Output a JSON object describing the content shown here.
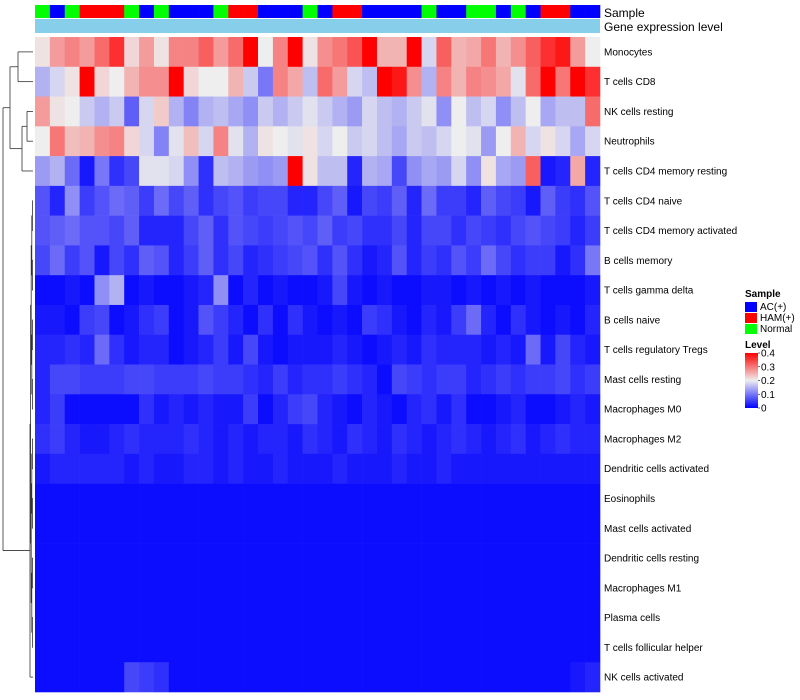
{
  "chart_data": {
    "type": "heatmap",
    "title": "",
    "annotation_labels": {
      "sample": "Sample",
      "expression": "Gene expression level"
    },
    "rows": [
      "Monocytes",
      "T cells CD8",
      "NK cells resting",
      "Neutrophils",
      "T cells CD4 memory resting",
      "T cells CD4 naive",
      "T cells CD4 memory activated",
      "B cells memory",
      "T cells gamma delta",
      "B cells naive",
      "T cells regulatory  Tregs",
      "Mast cells resting",
      "Macrophages M0",
      "Macrophages M2",
      "Dendritic cells activated",
      "Eosinophils",
      "Mast cells activated",
      "Dendritic cells resting",
      "Macrophages M1",
      "Plasma cells",
      "T cells follicular helper",
      "NK cells activated"
    ],
    "sample_groups": [
      "Normal",
      "AC(+)",
      "Normal",
      "HAM(+)",
      "HAM(+)",
      "HAM(+)",
      "Normal",
      "AC(+)",
      "Normal",
      "AC(+)",
      "AC(+)",
      "AC(+)",
      "Normal",
      "HAM(+)",
      "HAM(+)",
      "AC(+)",
      "AC(+)",
      "AC(+)",
      "Normal",
      "AC(+)",
      "HAM(+)",
      "HAM(+)",
      "AC(+)",
      "AC(+)",
      "AC(+)",
      "AC(+)",
      "Normal",
      "AC(+)",
      "AC(+)",
      "Normal",
      "Normal",
      "AC(+)",
      "Normal",
      "AC(+)",
      "HAM(+)",
      "HAM(+)",
      "AC(+)",
      "AC(+)"
    ],
    "values": [
      [
        0.21,
        0.27,
        0.29,
        0.27,
        0.31,
        0.36,
        0.22,
        0.27,
        0.21,
        0.29,
        0.29,
        0.32,
        0.27,
        0.31,
        0.42,
        0.2,
        0.29,
        0.4,
        0.21,
        0.28,
        0.3,
        0.33,
        0.4,
        0.25,
        0.25,
        0.42,
        0.18,
        0.32,
        0.25,
        0.26,
        0.3,
        0.25,
        0.28,
        0.32,
        0.36,
        0.38,
        0.27,
        0.2
      ],
      [
        0.15,
        0.18,
        0.21,
        0.4,
        0.22,
        0.2,
        0.25,
        0.28,
        0.28,
        0.4,
        0.22,
        0.2,
        0.2,
        0.25,
        0.17,
        0.1,
        0.29,
        0.26,
        0.16,
        0.31,
        0.27,
        0.18,
        0.16,
        0.4,
        0.38,
        0.28,
        0.15,
        0.29,
        0.25,
        0.29,
        0.28,
        0.26,
        0.19,
        0.31,
        0.42,
        0.3,
        0.4,
        0.36
      ],
      [
        0.27,
        0.21,
        0.2,
        0.17,
        0.15,
        0.17,
        0.08,
        0.18,
        0.23,
        0.15,
        0.11,
        0.15,
        0.16,
        0.14,
        0.12,
        0.17,
        0.15,
        0.17,
        0.19,
        0.17,
        0.15,
        0.13,
        0.18,
        0.16,
        0.15,
        0.17,
        0.19,
        0.12,
        0.2,
        0.16,
        0.18,
        0.12,
        0.16,
        0.2,
        0.14,
        0.16,
        0.16,
        0.31
      ],
      [
        0.2,
        0.3,
        0.24,
        0.25,
        0.28,
        0.29,
        0.22,
        0.18,
        0.11,
        0.19,
        0.24,
        0.18,
        0.29,
        0.19,
        0.15,
        0.21,
        0.2,
        0.19,
        0.21,
        0.18,
        0.2,
        0.17,
        0.18,
        0.16,
        0.14,
        0.17,
        0.16,
        0.18,
        0.2,
        0.19,
        0.13,
        0.2,
        0.25,
        0.18,
        0.21,
        0.18,
        0.14,
        0.18
      ],
      [
        0.13,
        0.15,
        0.09,
        0.02,
        0.1,
        0.04,
        0.06,
        0.19,
        0.19,
        0.18,
        0.12,
        0.04,
        0.16,
        0.15,
        0.13,
        0.12,
        0.13,
        0.41,
        0.21,
        0.16,
        0.16,
        0.03,
        0.15,
        0.14,
        0.06,
        0.12,
        0.14,
        0.13,
        0.18,
        0.12,
        0.21,
        0.14,
        0.13,
        0.32,
        0.02,
        0.03,
        0.26,
        0.03
      ],
      [
        0.07,
        0.03,
        0.12,
        0.05,
        0.07,
        0.09,
        0.08,
        0.05,
        0.09,
        0.06,
        0.08,
        0.04,
        0.06,
        0.07,
        0.05,
        0.06,
        0.06,
        0.03,
        0.03,
        0.06,
        0.08,
        0.02,
        0.06,
        0.05,
        0.08,
        0.03,
        0.09,
        0.05,
        0.05,
        0.03,
        0.08,
        0.06,
        0.05,
        0.02,
        0.08,
        0.05,
        0.04,
        0.07
      ],
      [
        0.07,
        0.08,
        0.09,
        0.07,
        0.07,
        0.06,
        0.08,
        0.03,
        0.03,
        0.03,
        0.06,
        0.08,
        0.04,
        0.07,
        0.06,
        0.05,
        0.06,
        0.07,
        0.06,
        0.08,
        0.05,
        0.06,
        0.04,
        0.04,
        0.06,
        0.03,
        0.06,
        0.06,
        0.04,
        0.06,
        0.05,
        0.04,
        0.06,
        0.07,
        0.06,
        0.05,
        0.03,
        0.05
      ],
      [
        0.06,
        0.09,
        0.05,
        0.07,
        0.02,
        0.06,
        0.04,
        0.08,
        0.07,
        0.03,
        0.05,
        0.08,
        0.04,
        0.06,
        0.03,
        0.04,
        0.05,
        0.06,
        0.07,
        0.04,
        0.07,
        0.04,
        0.02,
        0.03,
        0.07,
        0.03,
        0.05,
        0.04,
        0.07,
        0.05,
        0.09,
        0.06,
        0.04,
        0.05,
        0.05,
        0.02,
        0.04,
        0.1
      ],
      [
        0.01,
        0.01,
        0.02,
        0.01,
        0.12,
        0.15,
        0.01,
        0.02,
        0.01,
        0.01,
        0.02,
        0.03,
        0.12,
        0.01,
        0.03,
        0.01,
        0.02,
        0.01,
        0.01,
        0.02,
        0.06,
        0.02,
        0.01,
        0.02,
        0.01,
        0.01,
        0.02,
        0.02,
        0.01,
        0.02,
        0.01,
        0.02,
        0.01,
        0.02,
        0.01,
        0.01,
        0.01,
        0.02
      ],
      [
        0.02,
        0.02,
        0.01,
        0.05,
        0.06,
        0.01,
        0.02,
        0.04,
        0.05,
        0.01,
        0.02,
        0.07,
        0.05,
        0.03,
        0.01,
        0.04,
        0.01,
        0.04,
        0.02,
        0.01,
        0.02,
        0.01,
        0.05,
        0.04,
        0.02,
        0.01,
        0.03,
        0.02,
        0.05,
        0.09,
        0.03,
        0.01,
        0.04,
        0.02,
        0.01,
        0.02,
        0.01,
        0.03
      ],
      [
        0.03,
        0.03,
        0.04,
        0.03,
        0.09,
        0.04,
        0.02,
        0.03,
        0.03,
        0.01,
        0.02,
        0.03,
        0.05,
        0.02,
        0.06,
        0.02,
        0.01,
        0.02,
        0.02,
        0.02,
        0.03,
        0.02,
        0.01,
        0.02,
        0.03,
        0.02,
        0.04,
        0.03,
        0.03,
        0.03,
        0.02,
        0.03,
        0.02,
        0.09,
        0.02,
        0.06,
        0.03,
        0.02
      ],
      [
        0.03,
        0.06,
        0.06,
        0.05,
        0.05,
        0.05,
        0.06,
        0.06,
        0.05,
        0.05,
        0.05,
        0.06,
        0.05,
        0.05,
        0.04,
        0.03,
        0.05,
        0.03,
        0.04,
        0.04,
        0.05,
        0.04,
        0.03,
        0.01,
        0.06,
        0.05,
        0.04,
        0.05,
        0.05,
        0.03,
        0.04,
        0.05,
        0.04,
        0.05,
        0.05,
        0.06,
        0.04,
        0.05
      ],
      [
        0.03,
        0.05,
        0.01,
        0.01,
        0.01,
        0.01,
        0.01,
        0.04,
        0.02,
        0.03,
        0.02,
        0.03,
        0.02,
        0.02,
        0.05,
        0.01,
        0.03,
        0.05,
        0.06,
        0.03,
        0.02,
        0.01,
        0.03,
        0.02,
        0.01,
        0.03,
        0.04,
        0.02,
        0.04,
        0.01,
        0.01,
        0.02,
        0.03,
        0.01,
        0.01,
        0.02,
        0.03,
        0.02
      ],
      [
        0.04,
        0.05,
        0.03,
        0.02,
        0.02,
        0.03,
        0.04,
        0.03,
        0.03,
        0.03,
        0.04,
        0.03,
        0.02,
        0.03,
        0.02,
        0.03,
        0.03,
        0.02,
        0.04,
        0.03,
        0.02,
        0.04,
        0.03,
        0.02,
        0.04,
        0.03,
        0.02,
        0.03,
        0.04,
        0.03,
        0.02,
        0.03,
        0.04,
        0.02,
        0.03,
        0.04,
        0.03,
        0.03
      ],
      [
        0.02,
        0.03,
        0.03,
        0.03,
        0.03,
        0.03,
        0.02,
        0.03,
        0.02,
        0.02,
        0.03,
        0.03,
        0.02,
        0.03,
        0.02,
        0.02,
        0.03,
        0.02,
        0.02,
        0.02,
        0.03,
        0.02,
        0.02,
        0.02,
        0.03,
        0.02,
        0.02,
        0.03,
        0.02,
        0.02,
        0.02,
        0.02,
        0.02,
        0.02,
        0.02,
        0.02,
        0.02,
        0.02
      ],
      [
        0.01,
        0.01,
        0.01,
        0.01,
        0.01,
        0.01,
        0.01,
        0.01,
        0.01,
        0.01,
        0.01,
        0.01,
        0.01,
        0.01,
        0.01,
        0.01,
        0.01,
        0.01,
        0.01,
        0.01,
        0.01,
        0.01,
        0.01,
        0.01,
        0.01,
        0.01,
        0.01,
        0.01,
        0.01,
        0.01,
        0.01,
        0.01,
        0.01,
        0.01,
        0.01,
        0.01,
        0.01,
        0.01
      ],
      [
        0.01,
        0.01,
        0.01,
        0.01,
        0.01,
        0.01,
        0.01,
        0.01,
        0.01,
        0.01,
        0.01,
        0.01,
        0.01,
        0.01,
        0.01,
        0.01,
        0.01,
        0.01,
        0.01,
        0.01,
        0.01,
        0.01,
        0.01,
        0.01,
        0.01,
        0.01,
        0.01,
        0.01,
        0.01,
        0.01,
        0.01,
        0.01,
        0.01,
        0.01,
        0.01,
        0.01,
        0.01,
        0.01
      ],
      [
        0.01,
        0.01,
        0.01,
        0.01,
        0.01,
        0.01,
        0.01,
        0.01,
        0.01,
        0.01,
        0.01,
        0.01,
        0.01,
        0.01,
        0.01,
        0.01,
        0.01,
        0.01,
        0.01,
        0.01,
        0.01,
        0.01,
        0.01,
        0.01,
        0.01,
        0.01,
        0.01,
        0.01,
        0.01,
        0.01,
        0.01,
        0.01,
        0.01,
        0.01,
        0.01,
        0.01,
        0.01,
        0.01
      ],
      [
        0.01,
        0.01,
        0.01,
        0.01,
        0.01,
        0.01,
        0.01,
        0.01,
        0.01,
        0.01,
        0.01,
        0.01,
        0.01,
        0.01,
        0.01,
        0.01,
        0.01,
        0.01,
        0.01,
        0.01,
        0.01,
        0.01,
        0.01,
        0.01,
        0.01,
        0.01,
        0.01,
        0.01,
        0.01,
        0.01,
        0.01,
        0.01,
        0.01,
        0.01,
        0.01,
        0.01,
        0.01,
        0.01
      ],
      [
        0.01,
        0.01,
        0.01,
        0.01,
        0.01,
        0.01,
        0.01,
        0.01,
        0.01,
        0.01,
        0.01,
        0.01,
        0.01,
        0.01,
        0.01,
        0.01,
        0.01,
        0.01,
        0.01,
        0.01,
        0.01,
        0.01,
        0.01,
        0.01,
        0.01,
        0.01,
        0.01,
        0.01,
        0.01,
        0.01,
        0.01,
        0.01,
        0.01,
        0.01,
        0.01,
        0.01,
        0.01,
        0.01
      ],
      [
        0.01,
        0.01,
        0.01,
        0.01,
        0.01,
        0.01,
        0.01,
        0.01,
        0.01,
        0.01,
        0.01,
        0.01,
        0.01,
        0.01,
        0.01,
        0.01,
        0.01,
        0.01,
        0.01,
        0.01,
        0.01,
        0.01,
        0.01,
        0.01,
        0.01,
        0.01,
        0.01,
        0.01,
        0.01,
        0.01,
        0.01,
        0.01,
        0.01,
        0.01,
        0.01,
        0.01,
        0.01,
        0.01
      ],
      [
        0.01,
        0.01,
        0.01,
        0.01,
        0.01,
        0.01,
        0.06,
        0.05,
        0.04,
        0.01,
        0.01,
        0.01,
        0.01,
        0.01,
        0.01,
        0.01,
        0.01,
        0.01,
        0.01,
        0.01,
        0.01,
        0.01,
        0.01,
        0.01,
        0.01,
        0.01,
        0.01,
        0.01,
        0.01,
        0.01,
        0.01,
        0.01,
        0.01,
        0.01,
        0.01,
        0.01,
        0.02,
        0.03
      ]
    ],
    "color_scale": {
      "min": 0,
      "max": 0.4,
      "low": "#0000ff",
      "mid": "#eeeeee",
      "high": "#ff0000"
    },
    "expression_bar_color": "#87ceeb",
    "legend": {
      "sample_title": "Sample",
      "groups": [
        {
          "label": "AC(+)",
          "color": "#0000ff"
        },
        {
          "label": "HAM(+)",
          "color": "#ff0000"
        },
        {
          "label": "Normal",
          "color": "#00ff00"
        }
      ],
      "level_title": "Level",
      "level_ticks": [
        "0.4",
        "0.3",
        "0.2",
        "0.1",
        "0"
      ],
      "level_tick_values": [
        0.4,
        0.3,
        0.2,
        0.1,
        0
      ]
    }
  }
}
